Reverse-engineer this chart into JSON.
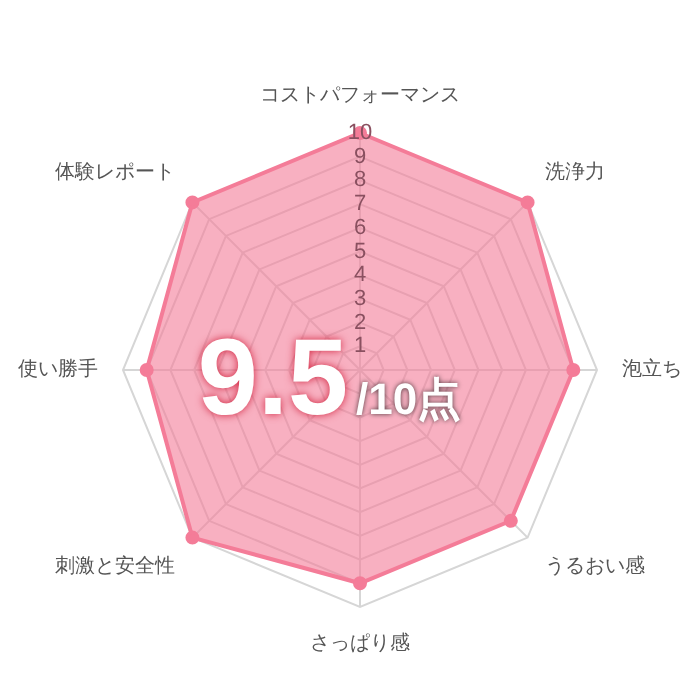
{
  "chart_data": {
    "type": "radar",
    "categories": [
      "コストパフォーマンス",
      "洗浄力",
      "泡立ち",
      "うるおい感",
      "さっぱり感",
      "刺激と安全性",
      "使い勝手",
      "体験レポート"
    ],
    "series": [
      {
        "color": "#f47c98",
        "values": [
          10,
          10,
          9,
          9,
          9,
          10,
          9,
          10
        ]
      }
    ],
    "ylim": [
      0,
      10
    ],
    "yticks": [
      1,
      2,
      3,
      4,
      5,
      6,
      7,
      8,
      9,
      10
    ],
    "grid": true,
    "legend": false,
    "marker": "circle",
    "annotations": [
      "9.5",
      "/10点"
    ]
  }
}
